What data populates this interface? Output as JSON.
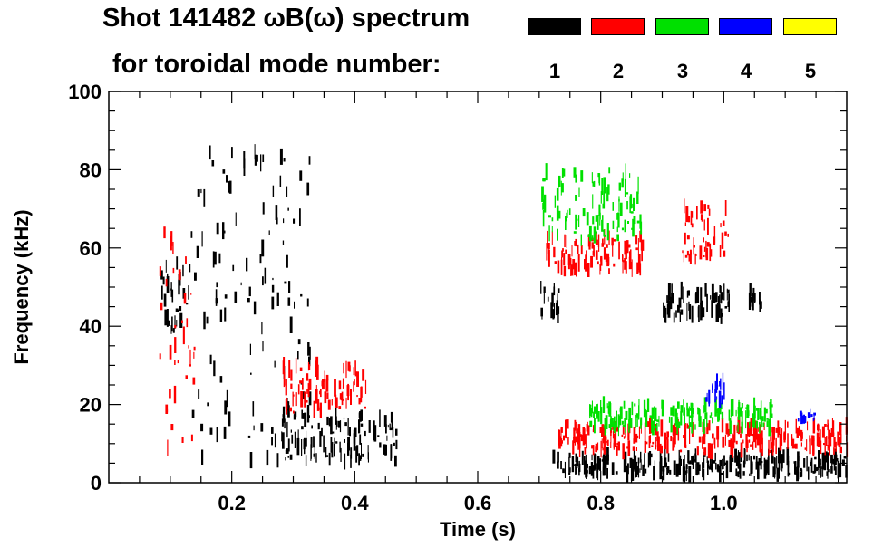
{
  "chart_data": {
    "type": "heatmap",
    "title": "Shot 141482 ωB(ω) spectrum",
    "subtitle": "for toroidal mode number:",
    "xlabel": "Time (s)",
    "ylabel": "Frequency (kHz)",
    "xlim": [
      0.0,
      1.2
    ],
    "ylim": [
      0,
      100
    ],
    "xticks": [
      0.2,
      0.4,
      0.6,
      0.8,
      1.0
    ],
    "xtick_labels": [
      "0.2",
      "0.4",
      "0.6",
      "0.8",
      "1.0"
    ],
    "yticks": [
      0,
      20,
      40,
      60,
      80,
      100
    ],
    "ytick_labels": [
      "0",
      "20",
      "40",
      "60",
      "80",
      "100"
    ],
    "legend": [
      {
        "label": "1",
        "color": "#000000"
      },
      {
        "label": "2",
        "color": "#ff0000"
      },
      {
        "label": "3",
        "color": "#00e000"
      },
      {
        "label": "4",
        "color": "#0000ff"
      },
      {
        "label": "5",
        "color": "#ffff00"
      }
    ],
    "features": [
      {
        "mode": 1,
        "description": "broadband activity",
        "t": [
          0.08,
          0.13
        ],
        "f": [
          38,
          58
        ]
      },
      {
        "mode": 1,
        "description": "vertical bursts",
        "t": [
          0.13,
          0.33
        ],
        "f": [
          5,
          85
        ]
      },
      {
        "mode": 1,
        "description": "low-frequency band",
        "t": [
          0.28,
          0.47
        ],
        "f": [
          5,
          18
        ]
      },
      {
        "mode": 1,
        "description": "steady low band",
        "t": [
          0.72,
          1.2
        ],
        "f": [
          2,
          7
        ]
      },
      {
        "mode": 1,
        "description": "mid-frequency band",
        "t": [
          0.7,
          0.73
        ],
        "f": [
          42,
          50
        ]
      },
      {
        "mode": 1,
        "description": "mid-frequency band",
        "t": [
          0.9,
          1.01
        ],
        "f": [
          42,
          50
        ]
      },
      {
        "mode": 1,
        "description": "isolated patch",
        "t": [
          1.04,
          1.06
        ],
        "f": [
          45,
          50
        ]
      },
      {
        "mode": 2,
        "description": "chirping band",
        "t": [
          0.71,
          0.87
        ],
        "f": [
          54,
          63
        ]
      },
      {
        "mode": 2,
        "description": "rising chirp",
        "t": [
          0.93,
          1.01
        ],
        "f": [
          57,
          71
        ]
      },
      {
        "mode": 2,
        "description": "low-frequency band",
        "t": [
          0.73,
          1.2
        ],
        "f": [
          8,
          15
        ]
      },
      {
        "mode": 2,
        "description": "early patches",
        "t": [
          0.08,
          0.14
        ],
        "f": [
          8,
          68
        ]
      },
      {
        "mode": 2,
        "description": "scattered",
        "t": [
          0.28,
          0.42
        ],
        "f": [
          18,
          30
        ]
      },
      {
        "mode": 3,
        "description": "chirping band",
        "t": [
          0.7,
          0.87
        ],
        "f": [
          62,
          80
        ]
      },
      {
        "mode": 3,
        "description": "low band",
        "t": [
          0.78,
          1.08
        ],
        "f": [
          14,
          20
        ]
      },
      {
        "mode": 4,
        "description": "patches",
        "t": [
          0.97,
          1.0
        ],
        "f": [
          21,
          26
        ]
      },
      {
        "mode": 4,
        "description": "patch",
        "t": [
          1.12,
          1.15
        ],
        "f": [
          16,
          18
        ]
      }
    ]
  }
}
